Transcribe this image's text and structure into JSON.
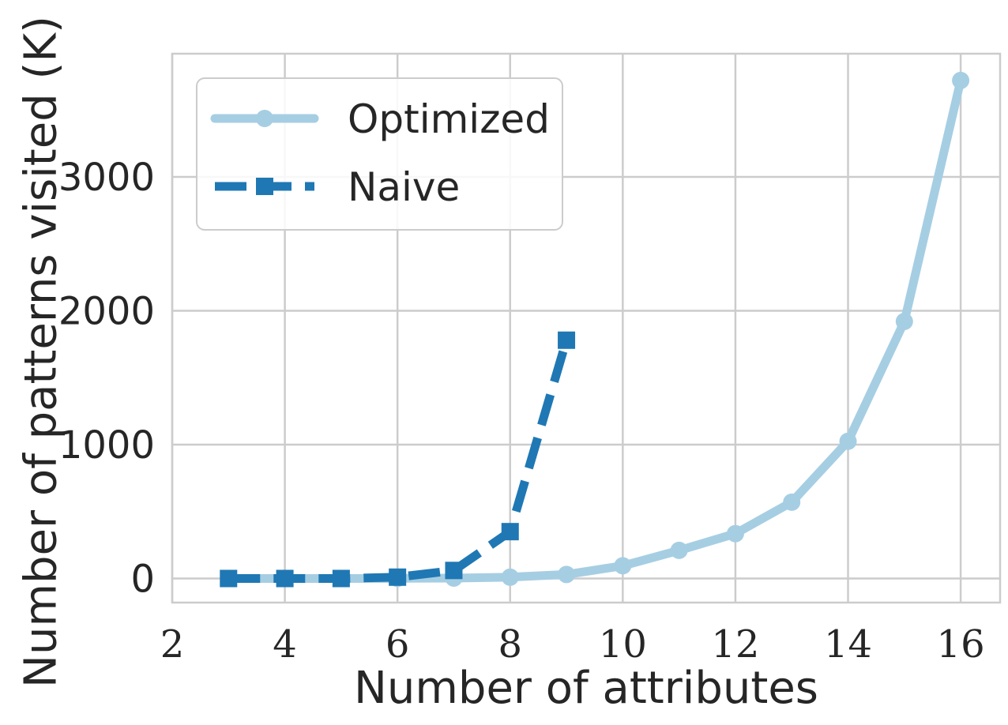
{
  "chart_data": {
    "type": "line",
    "title": "",
    "xlabel": "Number of attributes",
    "ylabel": "Number of patterns visited (K)",
    "xlim": [
      2,
      16.7
    ],
    "ylim": [
      -180,
      3920
    ],
    "xticks": [
      2,
      4,
      6,
      8,
      10,
      12,
      14,
      16
    ],
    "yticks": [
      0,
      1000,
      2000,
      3000
    ],
    "grid": true,
    "legend_position": "top-left",
    "series": [
      {
        "name": "Optimized",
        "color": "#a6cee3",
        "line_style": "solid",
        "marker": "circle",
        "x": [
          3,
          4,
          5,
          6,
          7,
          8,
          9,
          10,
          11,
          12,
          13,
          14,
          15,
          16
        ],
        "values": [
          0,
          0,
          0,
          1,
          3,
          10,
          30,
          95,
          210,
          335,
          570,
          1025,
          1920,
          3720
        ]
      },
      {
        "name": "Naive",
        "color": "#1f78b4",
        "line_style": "dashed",
        "marker": "square",
        "x": [
          3,
          4,
          5,
          6,
          7,
          8,
          9
        ],
        "values": [
          0,
          0,
          0,
          10,
          60,
          350,
          1780
        ]
      }
    ]
  }
}
